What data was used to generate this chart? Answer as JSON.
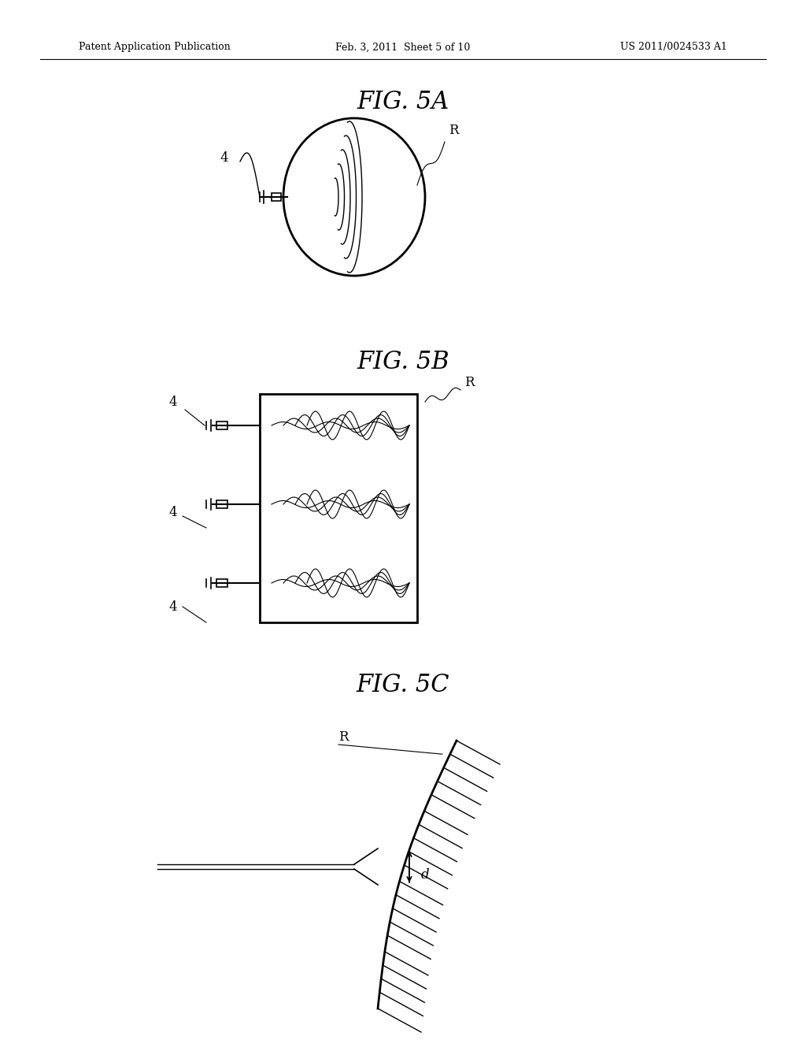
{
  "background_color": "#ffffff",
  "header_left": "Patent Application Publication",
  "header_mid": "Feb. 3, 2011  Sheet 5 of 10",
  "header_right": "US 2011/0024533 A1",
  "fig5a_title": "FIG. 5A",
  "fig5b_title": "FIG. 5B",
  "fig5c_title": "FIG. 5C",
  "label_4": "4",
  "label_R": "R",
  "label_d": "d"
}
